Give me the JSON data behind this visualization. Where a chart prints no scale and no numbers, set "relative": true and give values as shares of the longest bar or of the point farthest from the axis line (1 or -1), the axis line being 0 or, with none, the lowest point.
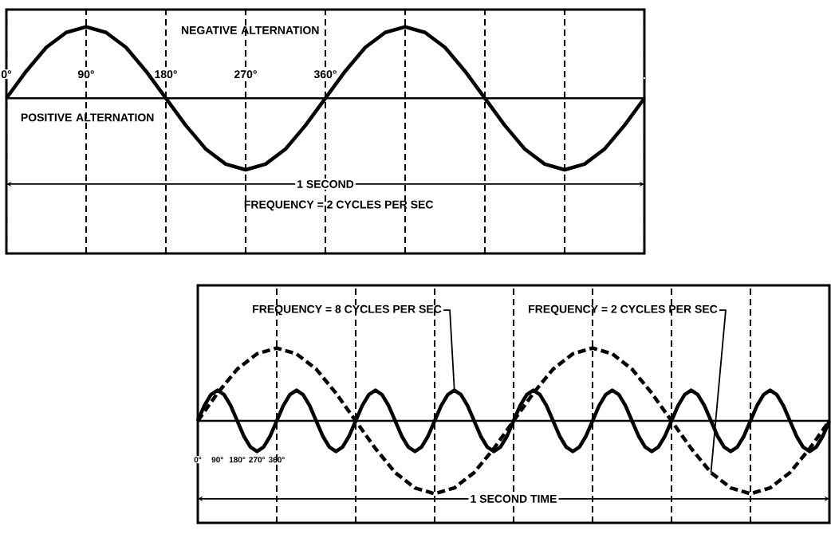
{
  "chart_data": [
    {
      "type": "line",
      "relative": true,
      "grid": "x",
      "tick_labels": "x",
      "xlim": [
        0,
        720
      ],
      "xticks": [
        {
          "value": 0,
          "label": "0°"
        },
        {
          "value": 90,
          "label": "90°"
        },
        {
          "value": 180,
          "label": "180°"
        },
        {
          "value": 270,
          "label": "270°"
        },
        {
          "value": 360,
          "label": "360°"
        },
        {
          "value": 450,
          "label": null
        },
        {
          "value": 540,
          "label": null
        },
        {
          "value": 630,
          "label": null
        },
        {
          "value": 720,
          "label": null
        }
      ],
      "series": [
        {
          "color": "#000000",
          "line_style": "solid",
          "x": [
            0,
            22.5,
            45,
            67.5,
            90,
            112.5,
            135,
            157.5,
            180,
            202.5,
            225,
            247.5,
            270,
            292.5,
            315,
            337.5,
            360,
            382.5,
            405,
            427.5,
            450,
            472.5,
            495,
            517.5,
            540,
            562.5,
            585,
            607.5,
            630,
            652.5,
            675,
            697.5,
            720
          ],
          "values": [
            0,
            0.38,
            0.71,
            0.92,
            1,
            0.92,
            0.71,
            0.38,
            0,
            -0.38,
            -0.71,
            -0.92,
            -1,
            -0.92,
            -0.71,
            -0.38,
            0,
            0.38,
            0.71,
            0.92,
            1,
            0.92,
            0.71,
            0.38,
            0,
            -0.38,
            -0.71,
            -0.92,
            -1,
            -0.92,
            -0.71,
            -0.38,
            0
          ]
        }
      ],
      "annotations": [
        "NEGATIVE ALTERNATION",
        "POSITIVE ALTERNATION",
        "1 SECOND",
        "FREQUENCY = 2 CYCLES PER SEC"
      ]
    },
    {
      "type": "line",
      "relative": true,
      "tick_labels": "x",
      "xlim": [
        0,
        2880
      ],
      "xticks": [
        {
          "value": 0,
          "label": "0°"
        },
        {
          "value": 90,
          "label": "90°"
        },
        {
          "value": 180,
          "label": "180°"
        },
        {
          "value": 270,
          "label": "270°"
        },
        {
          "value": 360,
          "label": "360°"
        }
      ],
      "ref_lines": [
        {
          "axis": "x",
          "value": 360,
          "line_style": "dashed"
        },
        {
          "axis": "x",
          "value": 720,
          "line_style": "dashed"
        },
        {
          "axis": "x",
          "value": 1080,
          "line_style": "dashed"
        },
        {
          "axis": "x",
          "value": 1440,
          "line_style": "dashed"
        },
        {
          "axis": "x",
          "value": 1800,
          "line_style": "dashed"
        },
        {
          "axis": "x",
          "value": 2160,
          "line_style": "dashed"
        },
        {
          "axis": "x",
          "value": 2520,
          "line_style": "dashed"
        }
      ],
      "series": [
        {
          "color": "#000000",
          "line_style": "solid",
          "x": [
            0,
            30,
            60,
            90,
            120,
            150,
            180,
            210,
            240,
            270,
            300,
            330,
            360,
            390,
            420,
            450,
            480,
            510,
            540,
            570,
            600,
            630,
            660,
            690,
            720,
            750,
            780,
            810,
            840,
            870,
            900,
            930,
            960,
            990,
            1020,
            1050,
            1080,
            1110,
            1140,
            1170,
            1200,
            1230,
            1260,
            1290,
            1320,
            1350,
            1380,
            1410,
            1440,
            1470,
            1500,
            1530,
            1560,
            1590,
            1620,
            1650,
            1680,
            1710,
            1740,
            1770,
            1800,
            1830,
            1860,
            1890,
            1920,
            1950,
            1980,
            2010,
            2040,
            2070,
            2100,
            2130,
            2160,
            2190,
            2220,
            2250,
            2280,
            2310,
            2340,
            2370,
            2400,
            2430,
            2460,
            2490,
            2520,
            2550,
            2580,
            2610,
            2640,
            2670,
            2700,
            2730,
            2760,
            2790,
            2820,
            2850,
            2880
          ],
          "values": [
            0,
            0.21,
            0.36,
            0.42,
            0.36,
            0.21,
            0,
            -0.21,
            -0.36,
            -0.42,
            -0.36,
            -0.21,
            0,
            0.21,
            0.36,
            0.42,
            0.36,
            0.21,
            0,
            -0.21,
            -0.36,
            -0.42,
            -0.36,
            -0.21,
            0,
            0.21,
            0.36,
            0.42,
            0.36,
            0.21,
            0,
            -0.21,
            -0.36,
            -0.42,
            -0.36,
            -0.21,
            0,
            0.21,
            0.36,
            0.42,
            0.36,
            0.21,
            0,
            -0.21,
            -0.36,
            -0.42,
            -0.36,
            -0.21,
            0,
            0.21,
            0.36,
            0.42,
            0.36,
            0.21,
            0,
            -0.21,
            -0.36,
            -0.42,
            -0.36,
            -0.21,
            0,
            0.21,
            0.36,
            0.42,
            0.36,
            0.21,
            0,
            -0.21,
            -0.36,
            -0.42,
            -0.36,
            -0.21,
            0,
            0.21,
            0.36,
            0.42,
            0.36,
            0.21,
            0,
            -0.21,
            -0.36,
            -0.42,
            -0.36,
            -0.21,
            0,
            0.21,
            0.36,
            0.42,
            0.36,
            0.21,
            0,
            -0.21,
            -0.36,
            -0.42,
            -0.36,
            -0.21,
            0
          ]
        },
        {
          "color": "#000000",
          "line_style": "dashed",
          "x": [
            0,
            90,
            180,
            270,
            360,
            450,
            540,
            630,
            720,
            810,
            900,
            990,
            1080,
            1170,
            1260,
            1350,
            1440,
            1530,
            1620,
            1710,
            1800,
            1890,
            1980,
            2070,
            2160,
            2250,
            2340,
            2430,
            2520,
            2610,
            2700,
            2790,
            2880
          ],
          "values": [
            0,
            0.38,
            0.71,
            0.92,
            1,
            0.92,
            0.71,
            0.38,
            0,
            -0.38,
            -0.71,
            -0.92,
            -1,
            -0.92,
            -0.71,
            -0.38,
            0,
            0.38,
            0.71,
            0.92,
            1,
            0.92,
            0.71,
            0.38,
            0,
            -0.38,
            -0.71,
            -0.92,
            -1,
            -0.92,
            -0.71,
            -0.38,
            0
          ]
        }
      ],
      "annotations": [
        {
          "text": "FREQUENCY = 8 CYCLES PER SEC",
          "x": 1170,
          "y": 0.42
        },
        {
          "text": "FREQUENCY = 2 CYCLES PER SEC",
          "x": 2340,
          "y": -0.71
        },
        "1 SECOND TIME"
      ]
    }
  ]
}
